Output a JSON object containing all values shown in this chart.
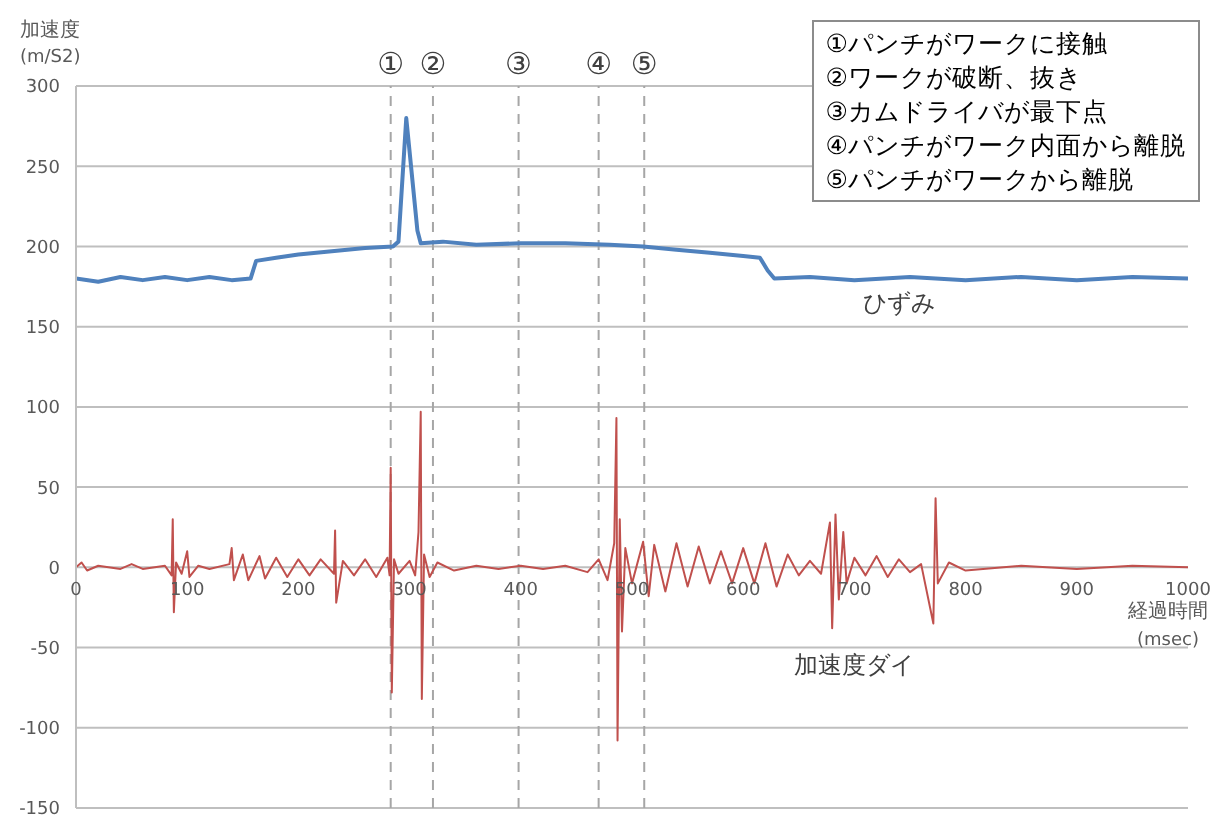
{
  "chart_data": {
    "type": "line",
    "ylabel": "加速度\n(m/S2)",
    "xlabel": "経過時間\n(msec)",
    "xlim": [
      0,
      1000
    ],
    "xticks": [
      0,
      100,
      200,
      300,
      400,
      500,
      600,
      700,
      800,
      900,
      1000
    ],
    "ylim": [
      -150,
      300
    ],
    "yticks": [
      -150,
      -100,
      -50,
      0,
      50,
      100,
      150,
      200,
      250,
      300
    ],
    "grid": "y",
    "marker": "none",
    "line_style": "solid",
    "ref_lines": [
      {
        "axis": "x",
        "value": 283,
        "label": "①",
        "color": "#a6a6a6",
        "line_style": "dashed"
      },
      {
        "axis": "x",
        "value": 321,
        "label": "②",
        "color": "#a6a6a6",
        "line_style": "dashed"
      },
      {
        "axis": "x",
        "value": 398,
        "label": "③",
        "color": "#a6a6a6",
        "line_style": "dashed"
      },
      {
        "axis": "x",
        "value": 470,
        "label": "④",
        "color": "#a6a6a6",
        "line_style": "dashed"
      },
      {
        "axis": "x",
        "value": 511,
        "label": "⑤",
        "color": "#a6a6a6",
        "line_style": "dashed"
      }
    ],
    "annotations": [
      "①パンチがワークに接触\n②ワークが破断、抜き\n③カムドライバが最下点\n④パンチがワーク内面から離脱\n⑤パンチがワークから離脱"
    ],
    "series": [
      {
        "name": "ひずみ",
        "color": "#4f81bd",
        "x": [
          0,
          20,
          40,
          60,
          80,
          100,
          120,
          140,
          157,
          162,
          180,
          200,
          230,
          260,
          285,
          290,
          297,
          303,
          307,
          310,
          330,
          360,
          400,
          440,
          480,
          510,
          540,
          570,
          600,
          615,
          622,
          628,
          660,
          700,
          750,
          800,
          850,
          900,
          950,
          1000
        ],
        "values": [
          180,
          178,
          181,
          179,
          181,
          179,
          181,
          179,
          180,
          191,
          193,
          195,
          197,
          199,
          200,
          203,
          280,
          238,
          210,
          202,
          203,
          201,
          202,
          202,
          201,
          200,
          198,
          196,
          194,
          193,
          185,
          180,
          181,
          179,
          181,
          179,
          181,
          179,
          181,
          180
        ]
      },
      {
        "name": "加速度ダイ",
        "color": "#c0504d",
        "x": [
          0,
          5,
          10,
          20,
          40,
          50,
          60,
          80,
          86,
          87,
          88,
          90,
          95,
          100,
          102,
          110,
          120,
          138,
          140,
          142,
          150,
          155,
          165,
          170,
          180,
          190,
          200,
          210,
          220,
          232,
          233,
          234,
          240,
          250,
          260,
          270,
          280,
          282,
          283,
          284,
          286,
          290,
          300,
          305,
          308,
          310,
          311,
          313,
          318,
          325,
          340,
          360,
          380,
          400,
          420,
          440,
          460,
          470,
          478,
          484,
          486,
          487,
          489,
          491,
          494,
          500,
          510,
          515,
          520,
          530,
          540,
          550,
          560,
          570,
          580,
          590,
          600,
          610,
          620,
          630,
          640,
          650,
          660,
          670,
          678,
          680,
          683,
          686,
          690,
          693,
          700,
          710,
          720,
          730,
          740,
          750,
          760,
          771,
          773,
          775,
          785,
          800,
          850,
          900,
          950,
          1000
        ],
        "values": [
          0,
          3,
          -2,
          1,
          -1,
          2,
          -1,
          1,
          -5,
          30,
          -28,
          3,
          -4,
          10,
          -6,
          1,
          -1,
          2,
          12,
          -8,
          8,
          -8,
          7,
          -7,
          6,
          -6,
          5,
          -5,
          5,
          -4,
          23,
          -22,
          4,
          -5,
          5,
          -6,
          6,
          -5,
          62,
          -78,
          5,
          -4,
          4,
          -5,
          22,
          97,
          -82,
          8,
          -6,
          3,
          -2,
          1,
          -1,
          1,
          -1,
          1,
          -3,
          5,
          -8,
          15,
          93,
          -108,
          30,
          -40,
          12,
          -10,
          16,
          -18,
          14,
          -15,
          15,
          -12,
          13,
          -10,
          10,
          -10,
          12,
          -10,
          15,
          -12,
          8,
          -5,
          4,
          -4,
          28,
          -38,
          33,
          -20,
          22,
          -10,
          6,
          -5,
          7,
          -6,
          5,
          -3,
          2,
          -35,
          43,
          -10,
          3,
          -2,
          1,
          -1,
          1,
          0
        ]
      }
    ]
  }
}
